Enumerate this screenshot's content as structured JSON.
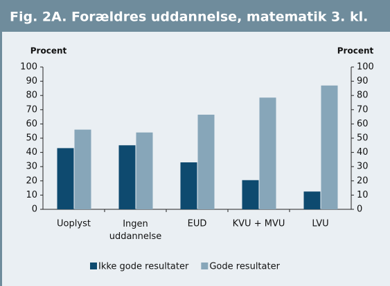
{
  "chart_data": {
    "type": "bar",
    "title": "Fig. 2A. Forældres uddannelse, matematik 3. kl.",
    "y_label": "Procent",
    "y2_label": "Procent",
    "categories": [
      "Uoplyst",
      "Ingen uddannelse",
      "EUD",
      "KVU + MVU",
      "LVU"
    ],
    "series": [
      {
        "name": "Ikke gode resultater",
        "color": "#0e4a6f",
        "values": [
          43,
          45,
          33,
          20.5,
          12.5
        ]
      },
      {
        "name": "Gode resultater",
        "color": "#87a6b9",
        "values": [
          56,
          54,
          66.5,
          78.5,
          87
        ]
      }
    ],
    "ylim": [
      0,
      100
    ],
    "yticks": [
      0,
      10,
      20,
      30,
      40,
      50,
      60,
      70,
      80,
      90,
      100
    ],
    "y2lim": [
      0,
      100
    ],
    "y2ticks": [
      0,
      10,
      20,
      30,
      40,
      50,
      60,
      70,
      80,
      90,
      100
    ],
    "grid": false
  }
}
